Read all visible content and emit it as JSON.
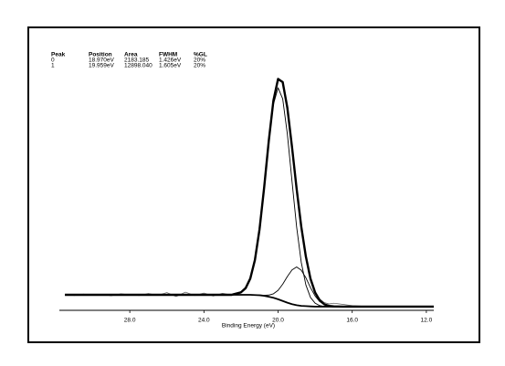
{
  "chart_data": {
    "type": "line",
    "peak_table": {
      "columns": [
        "Peak",
        "Position",
        "Area",
        "FWHM",
        "%GL"
      ],
      "rows": [
        [
          "0",
          "18.970eV",
          "2183.185",
          "1.426eV",
          "20%"
        ],
        [
          "1",
          "19.959eV",
          "12898.040",
          "1.605eV",
          "20%"
        ]
      ]
    },
    "x_label": "Binding Energy (eV)",
    "xlim": [
      31.8,
      11.6
    ],
    "xticks": [
      {
        "value": 28,
        "label": "28.0"
      },
      {
        "value": 24,
        "label": "24.0"
      },
      {
        "value": 20,
        "label": "20.0"
      },
      {
        "value": 16,
        "label": "16.0"
      },
      {
        "value": 12,
        "label": "12.0"
      }
    ],
    "ylim": [
      0,
      100
    ],
    "x": [
      31.5,
      31,
      30.5,
      30,
      29.5,
      29,
      28.5,
      28,
      27.5,
      27,
      26.5,
      26,
      25.5,
      25,
      24.5,
      24,
      23.5,
      23,
      22.5,
      22,
      21.75,
      21.5,
      21.25,
      21,
      20.75,
      20.5,
      20.25,
      20,
      19.75,
      19.5,
      19.25,
      19,
      18.75,
      18.5,
      18.25,
      18,
      17.75,
      17.5,
      17.25,
      17,
      16.5,
      16,
      15.5,
      15,
      14.5,
      14,
      13.5,
      13,
      12.5,
      12,
      11.6
    ],
    "series": [
      {
        "color": "#555555",
        "linewidth": 0.7,
        "values": [
          6.5,
          6.0,
          6.6,
          6.2,
          6.4,
          5.9,
          6.7,
          6.3,
          6.0,
          6.8,
          6.1,
          7.2,
          5.6,
          7.4,
          6.0,
          7.0,
          5.8,
          6.9,
          6.2,
          7.6,
          9.4,
          12.5,
          21.0,
          32.4,
          50.3,
          68.5,
          85.6,
          93.6,
          92.9,
          81.8,
          66.9,
          49.0,
          34.5,
          21.3,
          13.3,
          7.8,
          4.6,
          3.1,
          2.6,
          2.9,
          2.4,
          1.9,
          1.7,
          1.4,
          1.6,
          1.5,
          1.4,
          1.6,
          1.5,
          1.5,
          1.5
        ]
      },
      {
        "color": "#000000",
        "linewidth": 1.8,
        "values": [
          6.3,
          6.3,
          6.3,
          6.3,
          6.3,
          6.3,
          6.3,
          6.3,
          6.3,
          6.3,
          6.3,
          6.3,
          6.3,
          6.3,
          6.3,
          6.3,
          6.3,
          6.3,
          6.3,
          6.3,
          6.3,
          6.3,
          6.2,
          6.1,
          5.9,
          5.5,
          5.1,
          4.5,
          3.8,
          3.1,
          2.5,
          2.1,
          1.8,
          1.7,
          1.6,
          1.5,
          1.5,
          1.5,
          1.5,
          1.5,
          1.5,
          1.5,
          1.5,
          1.5,
          1.5,
          1.5,
          1.5,
          1.5,
          1.5,
          1.5,
          1.5
        ]
      },
      {
        "color": "#000000",
        "linewidth": 0.9,
        "values": [
          null,
          null,
          null,
          null,
          null,
          null,
          null,
          null,
          null,
          null,
          null,
          null,
          null,
          null,
          null,
          null,
          null,
          null,
          null,
          7.3,
          9.0,
          12.9,
          20.4,
          32.8,
          49.7,
          68.2,
          83.6,
          90.3,
          85.8,
          71.6,
          52.5,
          33.9,
          19.5,
          10.3,
          5.2,
          2.9,
          1.9,
          1.6,
          1.5,
          1.5,
          1.5,
          null,
          null,
          null,
          null,
          null,
          null,
          null,
          null,
          null,
          null
        ]
      },
      {
        "color": "#000000",
        "linewidth": 0.9,
        "values": [
          null,
          null,
          null,
          null,
          null,
          null,
          null,
          null,
          null,
          null,
          null,
          null,
          null,
          null,
          null,
          null,
          null,
          null,
          null,
          6.3,
          6.3,
          6.3,
          6.2,
          6.2,
          6.1,
          6.2,
          6.7,
          8.1,
          10.6,
          13.7,
          16.4,
          17.6,
          16.3,
          13.2,
          9.2,
          5.8,
          3.5,
          2.3,
          1.8,
          1.6,
          1.5,
          null,
          null,
          null,
          null,
          null,
          null,
          null,
          null,
          null,
          null
        ]
      },
      {
        "color": "#000000",
        "linewidth": 2.4,
        "values": [
          6.3,
          6.3,
          6.3,
          6.3,
          6.3,
          6.3,
          6.3,
          6.3,
          6.3,
          6.3,
          6.3,
          6.3,
          6.3,
          6.3,
          6.3,
          6.3,
          6.3,
          6.3,
          6.3,
          7.3,
          9.0,
          12.9,
          20.4,
          32.9,
          49.9,
          68.9,
          85.2,
          93.9,
          92.6,
          82.2,
          66.4,
          49.4,
          34.0,
          21.8,
          12.8,
          7.2,
          4.0,
          2.4,
          1.8,
          1.6,
          1.5,
          1.5,
          1.5,
          1.5,
          1.5,
          1.5,
          1.5,
          1.5,
          1.5,
          1.5,
          1.5
        ]
      }
    ]
  }
}
